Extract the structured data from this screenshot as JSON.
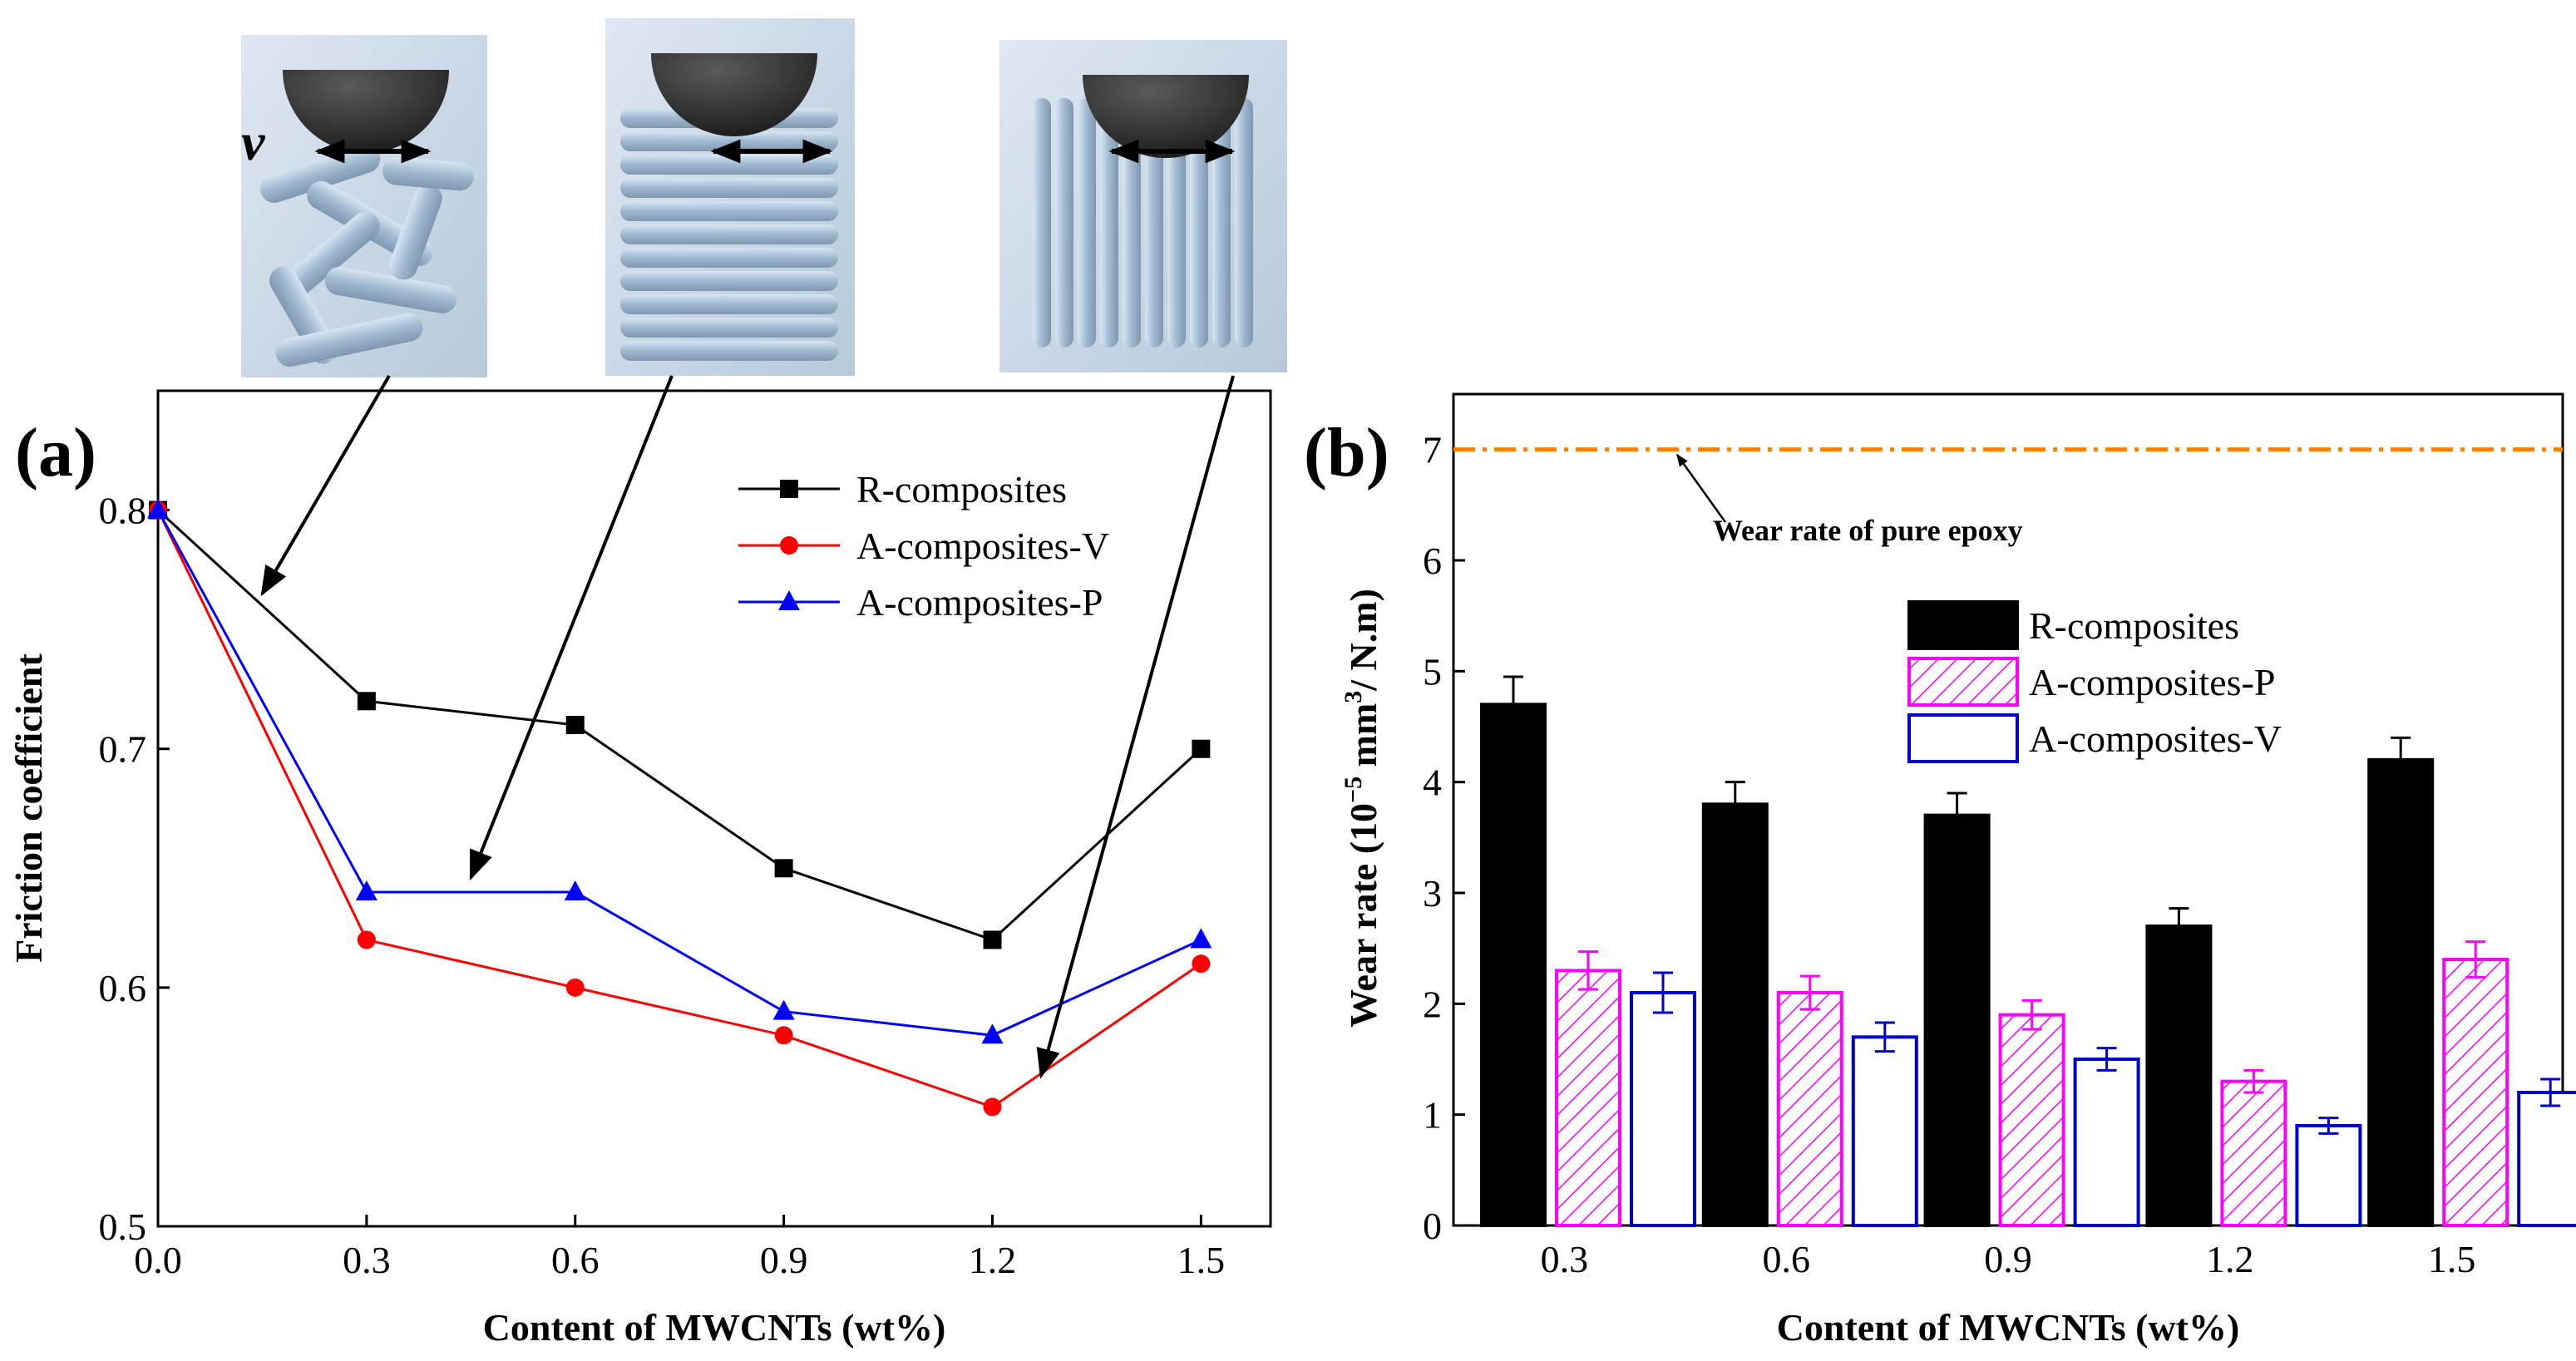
{
  "chart_data": [
    {
      "type": "line",
      "panel_label": "(a)",
      "xlabel": "Content of MWCNTs (wt%)",
      "ylabel": "Friction coefficient",
      "x": [
        0.0,
        0.3,
        0.6,
        0.9,
        1.2,
        1.5
      ],
      "x_tick_labels": [
        "0.0",
        "0.3",
        "0.6",
        "0.9",
        "1.2",
        "1.5"
      ],
      "y_tick_labels": [
        "0.5",
        "0.6",
        "0.7",
        "0.8"
      ],
      "xlim": [
        0.0,
        1.6
      ],
      "ylim": [
        0.5,
        0.85
      ],
      "legend_position": "top-right",
      "series": [
        {
          "name": "R-composites",
          "marker": "square",
          "color": "#000000",
          "values": [
            0.8,
            0.72,
            0.71,
            0.65,
            0.62,
            0.7
          ]
        },
        {
          "name": "A-composites-V",
          "marker": "circle",
          "color": "#ff0000",
          "values": [
            0.8,
            0.62,
            0.6,
            0.58,
            0.55,
            0.61
          ]
        },
        {
          "name": "A-composites-P",
          "marker": "triangle",
          "color": "#0000ff",
          "values": [
            0.8,
            0.64,
            0.64,
            0.59,
            0.58,
            0.62
          ]
        }
      ],
      "insets": [
        {
          "name": "random-orientation",
          "speed_label": "v",
          "points_to_x": 0.15
        },
        {
          "name": "parallel-orientation",
          "points_to_x": 0.45
        },
        {
          "name": "vertical-orientation",
          "points_to_x": 1.27
        }
      ]
    },
    {
      "type": "bar",
      "panel_label": "(b)",
      "xlabel": "Content of MWCNTs (wt%)",
      "ylabel": "Wear rate (10",
      "ylabel_sup1": "−5",
      "ylabel_mid": " mm",
      "ylabel_sup2": "3",
      "ylabel_end": "/ N.m)",
      "categories": [
        "0.3",
        "0.6",
        "0.9",
        "1.2",
        "1.5"
      ],
      "y_tick_labels": [
        "0",
        "1",
        "2",
        "3",
        "4",
        "5",
        "6",
        "7"
      ],
      "ylim": [
        0,
        7.5
      ],
      "legend_position": "upper-center",
      "reference_line": {
        "value": 7.0,
        "label": "Wear rate of pure epoxy",
        "color": "#ff8000"
      },
      "series": [
        {
          "name": "R-composites",
          "fill": "solid",
          "color": "#000000",
          "values": [
            4.7,
            3.8,
            3.7,
            2.7,
            4.2
          ],
          "errors": [
            0.25,
            0.2,
            0.2,
            0.16,
            0.2
          ]
        },
        {
          "name": "A-composites-P",
          "fill": "hatched",
          "color": "#ff00ff",
          "values": [
            2.3,
            2.1,
            1.9,
            1.3,
            2.4
          ],
          "errors": [
            0.17,
            0.15,
            0.13,
            0.1,
            0.16
          ]
        },
        {
          "name": "A-composites-V",
          "fill": "open",
          "color": "#0000cc",
          "values": [
            2.1,
            1.7,
            1.5,
            0.9,
            1.2
          ],
          "errors": [
            0.18,
            0.13,
            0.1,
            0.07,
            0.12
          ]
        }
      ]
    }
  ]
}
